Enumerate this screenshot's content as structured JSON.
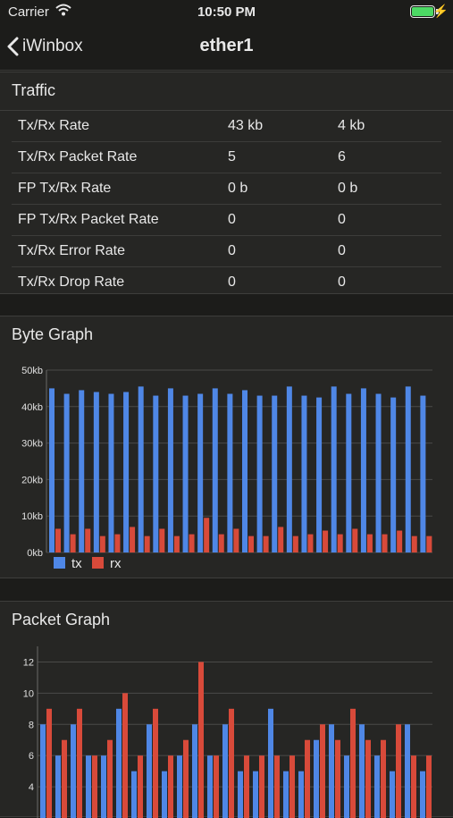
{
  "status": {
    "carrier": "Carrier",
    "time": "10:50 PM"
  },
  "nav": {
    "back_label": "iWinbox",
    "title": "ether1"
  },
  "traffic": {
    "title": "Traffic",
    "rows": [
      {
        "label": "Tx/Rx Rate",
        "tx": "43 kb",
        "rx": "4 kb"
      },
      {
        "label": "Tx/Rx Packet Rate",
        "tx": "5",
        "rx": "6"
      },
      {
        "label": "FP Tx/Rx Rate",
        "tx": "0 b",
        "rx": "0 b"
      },
      {
        "label": "FP Tx/Rx Packet Rate",
        "tx": "0",
        "rx": "0"
      },
      {
        "label": "Tx/Rx Error Rate",
        "tx": "0",
        "rx": "0"
      },
      {
        "label": "Tx/Rx Drop Rate",
        "tx": "0",
        "rx": "0"
      }
    ]
  },
  "byte_graph": {
    "title": "Byte Graph"
  },
  "packet_graph": {
    "title": "Packet Graph"
  },
  "colors": {
    "tx": "#4f87e6",
    "rx": "#d84a3a"
  },
  "chart_data": [
    {
      "type": "bar",
      "ylim": [
        0,
        50
      ],
      "yticks": [
        0,
        10,
        20,
        30,
        40,
        50
      ],
      "ytick_labels": [
        "0kb",
        "10kb",
        "20kb",
        "30kb",
        "40kb",
        "50kb"
      ],
      "grid": true,
      "legend": "bottom-left",
      "series": [
        {
          "name": "tx",
          "values": [
            45,
            43.5,
            44.5,
            44,
            43.5,
            44,
            45.5,
            43,
            45,
            43,
            43.5,
            45,
            43.5,
            44.5,
            43,
            43,
            45.5,
            43,
            42.5,
            45.5,
            43.5,
            45,
            43.5,
            42.5,
            45.5,
            43
          ]
        },
        {
          "name": "rx",
          "values": [
            6.5,
            5,
            6.5,
            4.5,
            5,
            7,
            4.5,
            6.5,
            4.5,
            5,
            9.5,
            5,
            6.5,
            4.5,
            4.5,
            7,
            4.5,
            5,
            6,
            5,
            6.5,
            5,
            5,
            6,
            4.5,
            4.5
          ]
        }
      ]
    },
    {
      "type": "bar",
      "ylim": [
        2,
        13
      ],
      "yticks": [
        4,
        6,
        8,
        10,
        12
      ],
      "ytick_labels": [
        "4",
        "6",
        "8",
        "10",
        "12"
      ],
      "grid": true,
      "series": [
        {
          "name": "tx",
          "values": [
            8,
            6,
            8,
            6,
            6,
            9,
            5,
            8,
            5,
            6,
            8,
            6,
            8,
            5,
            5,
            9,
            5,
            5,
            7,
            8,
            6,
            8,
            6,
            5,
            8,
            5
          ]
        },
        {
          "name": "rx",
          "values": [
            9,
            7,
            9,
            6,
            7,
            10,
            6,
            9,
            6,
            7,
            12,
            6,
            9,
            6,
            6,
            6,
            6,
            7,
            8,
            7,
            9,
            7,
            7,
            8,
            6,
            6
          ]
        }
      ]
    }
  ]
}
